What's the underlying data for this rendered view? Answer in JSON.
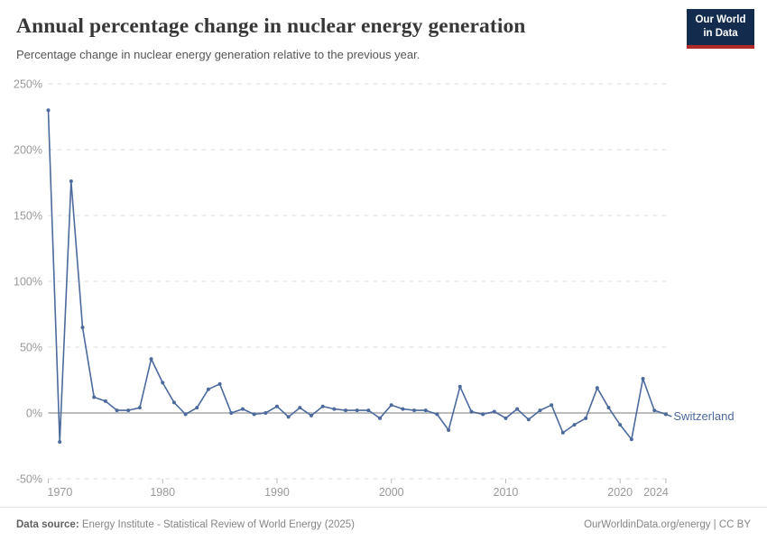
{
  "header": {
    "title": "Annual percentage change in nuclear energy generation",
    "subtitle": "Percentage change in nuclear energy generation relative to the previous year.",
    "logo": {
      "line1": "Our World",
      "line2": "in Data"
    }
  },
  "chart_data": {
    "type": "line",
    "title": "Annual percentage change in nuclear energy generation",
    "xlabel": "",
    "ylabel": "",
    "xlim": [
      1970,
      2024
    ],
    "ylim": [
      -50,
      250
    ],
    "x_ticks": [
      1970,
      1980,
      1990,
      2000,
      2010,
      2020,
      2024
    ],
    "y_ticks": [
      -50,
      0,
      50,
      100,
      150,
      200,
      250
    ],
    "y_tick_suffix": "%",
    "grid": "horizontal-dashed, zero-line-solid",
    "legend": "end-of-line-label",
    "series": [
      {
        "name": "Switzerland",
        "color": "#4c6a9c",
        "years": [
          1970,
          1971,
          1972,
          1973,
          1974,
          1975,
          1976,
          1977,
          1978,
          1979,
          1980,
          1981,
          1982,
          1983,
          1984,
          1985,
          1986,
          1987,
          1988,
          1989,
          1990,
          1991,
          1992,
          1993,
          1994,
          1995,
          1996,
          1997,
          1998,
          1999,
          2000,
          2001,
          2002,
          2003,
          2004,
          2005,
          2006,
          2007,
          2008,
          2009,
          2010,
          2011,
          2012,
          2013,
          2014,
          2015,
          2016,
          2017,
          2018,
          2019,
          2020,
          2021,
          2022,
          2023,
          2024
        ],
        "values": [
          230,
          -22,
          176,
          65,
          12,
          9,
          2,
          2,
          4,
          41,
          23,
          8,
          -1,
          4,
          18,
          22,
          0,
          3,
          -1,
          0,
          5,
          -3,
          4,
          -2,
          5,
          3,
          2,
          2,
          2,
          -4,
          6,
          3,
          2,
          2,
          -1,
          -13,
          20,
          1,
          -1,
          1,
          -4,
          3,
          -5,
          2,
          6,
          -15,
          -9,
          -4,
          19,
          4,
          -9,
          -20,
          26,
          2,
          -1
        ]
      }
    ]
  },
  "footer": {
    "source_label": "Data source:",
    "source_text": " Energy Institute - Statistical Review of World Energy (2025)",
    "right_text": "OurWorldinData.org/energy | CC BY"
  },
  "colors": {
    "series_line": "#4c6a9c",
    "grid_dashed": "#dedede",
    "zero_line": "#b3b3b3",
    "axis_text": "#999999",
    "logo_bg": "#132b4d",
    "logo_stripe": "#b12a28"
  }
}
